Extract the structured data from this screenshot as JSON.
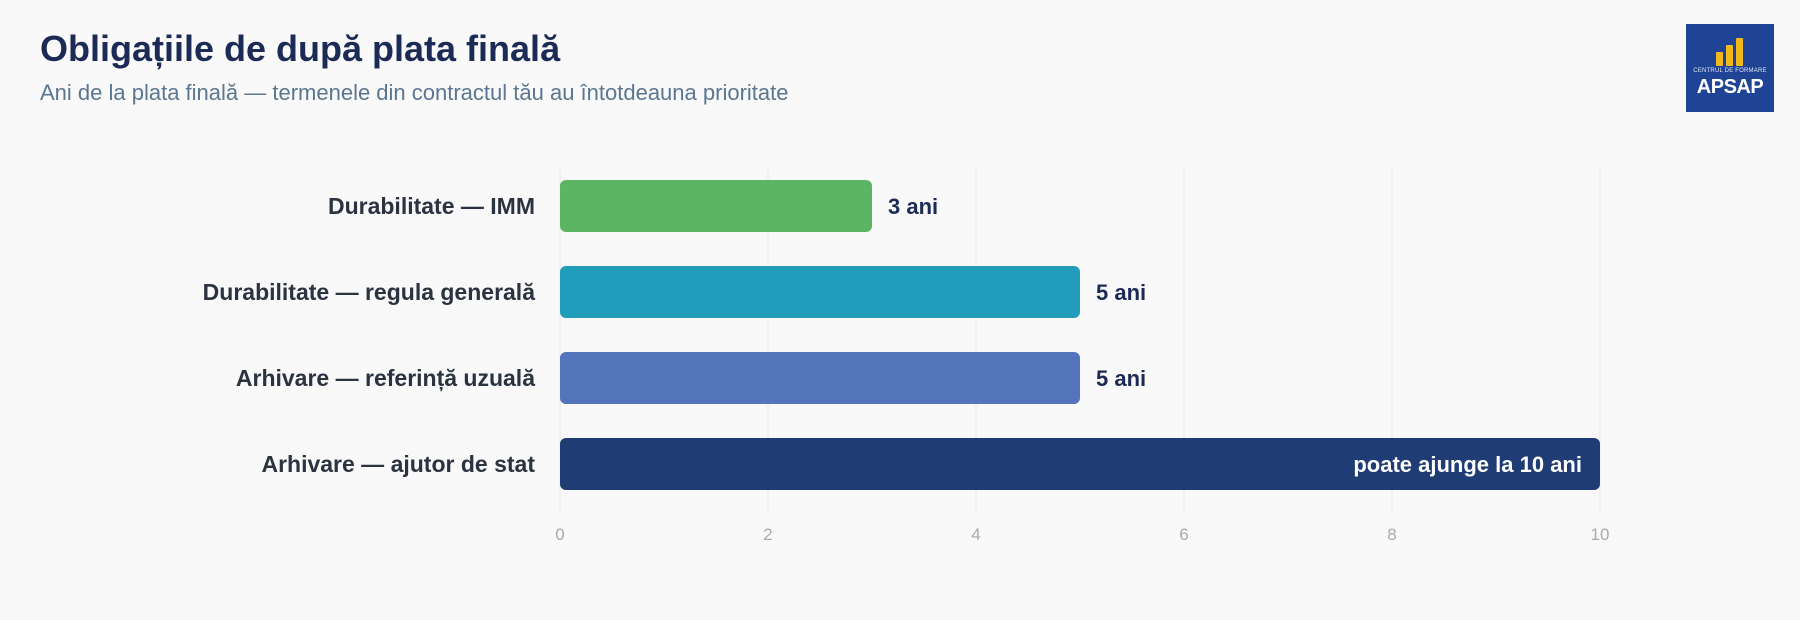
{
  "header": {
    "title": "Obligațiile de după plata finală",
    "subtitle": "Ani de la plata finală — termenele din contractul tău au întotdeauna prioritate"
  },
  "logo": {
    "small_text": "CENTRUL DE FORMARE",
    "main_text": "APSAP",
    "background": "#1f4496",
    "bar_color": "#f2b91c"
  },
  "chart_data": {
    "type": "bar",
    "orientation": "horizontal",
    "title": "Obligațiile de după plata finală",
    "subtitle": "Ani de la plata finală — termenele din contractul tău au întotdeauna prioritate",
    "xlabel": "",
    "ylabel": "",
    "xlim": [
      0,
      10
    ],
    "x_ticks": [
      0,
      2,
      4,
      6,
      8,
      10
    ],
    "grid": "vertical",
    "categories": [
      "Durabilitate — IMM",
      "Durabilitate — regula generală",
      "Arhivare — referință uzuală",
      "Arhivare — ajutor de stat"
    ],
    "values": [
      3,
      5,
      5,
      10
    ],
    "data_labels": [
      "3 ani",
      "5 ani",
      "5 ani",
      "poate ajunge la 10 ani"
    ],
    "label_inside": [
      false,
      false,
      false,
      true
    ],
    "colors": [
      "#5cb563",
      "#219cba",
      "#5474bc",
      "#1f3c74"
    ]
  }
}
